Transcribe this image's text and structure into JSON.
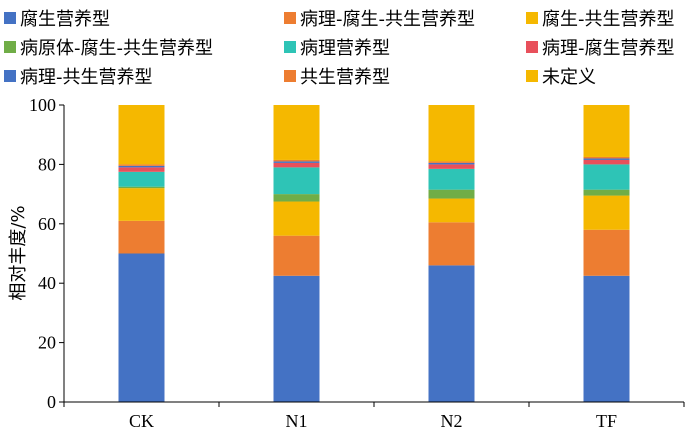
{
  "chart_data": {
    "type": "bar",
    "stacked": true,
    "xlabel": "",
    "ylabel": "相对丰度/%",
    "ylim": [
      0,
      100
    ],
    "yticks": [
      0,
      20,
      40,
      60,
      80,
      100
    ],
    "grid": false,
    "legend_position": "top",
    "categories": [
      "CK",
      "N1",
      "N2",
      "TF"
    ],
    "series": [
      {
        "name": "腐生营养型",
        "color": "#4472c4",
        "values": [
          50,
          42.5,
          46,
          42.5
        ]
      },
      {
        "name": "病理-腐生-共生营养型",
        "color": "#ed7d31",
        "values": [
          11,
          13.5,
          14.5,
          15.5
        ]
      },
      {
        "name": "腐生-共生营养型",
        "color": "#f5b800",
        "values": [
          11,
          11.5,
          8,
          11.5
        ]
      },
      {
        "name": "病原体-腐生-共生营养型",
        "color": "#70ad47",
        "values": [
          0.5,
          2.5,
          3,
          2
        ]
      },
      {
        "name": "病理营养型",
        "color": "#2ec4b6",
        "values": [
          5,
          9,
          7,
          8.5
        ]
      },
      {
        "name": "病理-腐生营养型",
        "color": "#e8505b",
        "values": [
          1.5,
          1.5,
          1.5,
          1.5
        ]
      },
      {
        "name": "病理-共生营养型",
        "color": "#4472c4",
        "values": [
          0.5,
          0.5,
          0.5,
          0.5
        ]
      },
      {
        "name": "共生营养型",
        "color": "#ed7d31",
        "values": [
          0.5,
          0.5,
          0.5,
          0.5
        ]
      },
      {
        "name": "未定义",
        "color": "#f5b800",
        "values": [
          20,
          18.5,
          19,
          17.5
        ]
      }
    ]
  }
}
